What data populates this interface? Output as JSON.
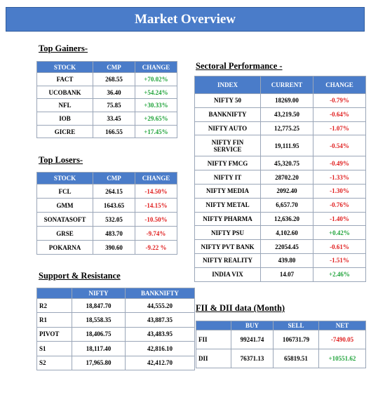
{
  "header": {
    "title": "Market Overview"
  },
  "gainers": {
    "title": "Top Gainers-",
    "columns": [
      "STOCK",
      "CMP",
      "CHANGE"
    ],
    "rows": [
      [
        "FACT",
        "268.55",
        "+70.02%"
      ],
      [
        "UCOBANK",
        "36.40",
        "+54.24%"
      ],
      [
        "NFL",
        "75.85",
        "+30.33%"
      ],
      [
        "IOB",
        "33.45",
        "+29.65%"
      ],
      [
        "GICRE",
        "166.55",
        "+17.45%"
      ]
    ]
  },
  "losers": {
    "title": "Top Losers-",
    "columns": [
      "STOCK",
      "CMP",
      "CHANGE"
    ],
    "rows": [
      [
        "FCL",
        "264.15",
        "-14.50%"
      ],
      [
        "GMM",
        "1643.65",
        "-14.15%"
      ],
      [
        "SONATASOFT",
        "532.05",
        "-10.50%"
      ],
      [
        "GRSE",
        "483.70",
        "-9.74%"
      ],
      [
        "POKARNA",
        "390.60",
        "-9.22 %"
      ]
    ]
  },
  "support": {
    "title": "Support & Resistance",
    "columns": [
      "NIFTY",
      "BANKNIFTY"
    ],
    "rows": [
      [
        "R2",
        "18,847.70",
        "44,555.20"
      ],
      [
        "R1",
        "18,558.35",
        "43,887.35"
      ],
      [
        "PIVOT",
        "18,406.75",
        "43,483.95"
      ],
      [
        "S1",
        "18,117.40",
        "42,816.10"
      ],
      [
        "S2",
        "17,965.80",
        "42,412.70"
      ]
    ]
  },
  "sectoral": {
    "title": "Sectoral Performance -",
    "columns": [
      "INDEX",
      "CURRENT",
      "CHANGE"
    ],
    "rows": [
      [
        "NIFTY 50",
        "18269.00",
        "-0.79%"
      ],
      [
        "BANKNIFTY",
        "43,219.50",
        "-0.64%"
      ],
      [
        "NIFTY AUTO",
        "12,775.25",
        "-1.07%"
      ],
      [
        "NIFTY FIN SERVICE",
        "19,111.95",
        "-0.54%"
      ],
      [
        "NIFTY FMCG",
        "45,320.75",
        "-0.49%"
      ],
      [
        "NIFTY IT",
        "28702.20",
        "-1.33%"
      ],
      [
        "NIFTY MEDIA",
        "2092.40",
        "-1.30%"
      ],
      [
        "NIFTY METAL",
        "6,657.70",
        "-0.76%"
      ],
      [
        "NIFTY PHARMA",
        "12,636.20",
        "-1.40%"
      ],
      [
        "NIFTY PSU",
        "4,102.60",
        "+0.42%"
      ],
      [
        "NIFTY PVT BANK",
        "22054.45",
        "-0.61%"
      ],
      [
        "NIFTY REALITY",
        "439.80",
        "-1.51%"
      ],
      [
        "INDIA VIX",
        "14.07",
        "+2.46%"
      ]
    ]
  },
  "fii_dii": {
    "title": "FII & DII data (Month)",
    "columns": [
      "BUY",
      "SELL",
      "NET"
    ],
    "rows": [
      [
        "FII",
        "99241.74",
        "106731.79",
        "-7490.05"
      ],
      [
        "DII",
        "76371.13",
        "65819.51",
        "+10551.62"
      ]
    ]
  }
}
